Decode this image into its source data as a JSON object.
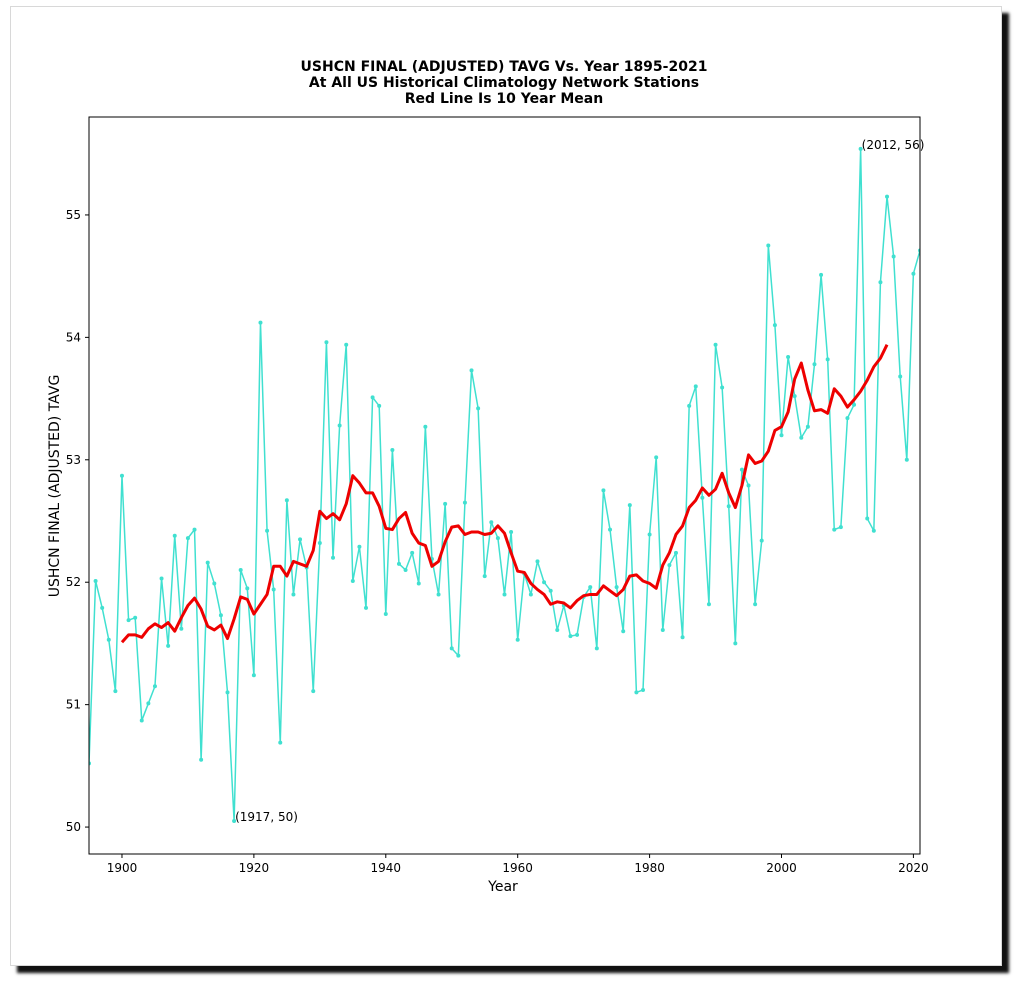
{
  "chart_data": {
    "type": "line",
    "title": [
      "USHCN FINAL (ADJUSTED) TAVG Vs. Year 1895-2021",
      "At All US Historical Climatology Network Stations",
      "Red Line Is 10 Year Mean"
    ],
    "xlabel": "Year",
    "ylabel": "USHCN FINAL (ADJUSTED) TAVG",
    "xlim": [
      1895,
      2021
    ],
    "ylim": [
      49.78,
      55.8
    ],
    "xticks": [
      1900,
      1920,
      1940,
      1960,
      1980,
      2000,
      2020
    ],
    "yticks": [
      50,
      51,
      52,
      53,
      54,
      55
    ],
    "grid": false,
    "legend": "none",
    "series": [
      {
        "color": "#40e0d0",
        "style": "line-with-dots",
        "x": [
          1895,
          1896,
          1897,
          1898,
          1899,
          1900,
          1901,
          1902,
          1903,
          1904,
          1905,
          1906,
          1907,
          1908,
          1909,
          1910,
          1911,
          1912,
          1913,
          1914,
          1915,
          1916,
          1917,
          1918,
          1919,
          1920,
          1921,
          1922,
          1923,
          1924,
          1925,
          1926,
          1927,
          1928,
          1929,
          1930,
          1931,
          1932,
          1933,
          1934,
          1935,
          1936,
          1937,
          1938,
          1939,
          1940,
          1941,
          1942,
          1943,
          1944,
          1945,
          1946,
          1947,
          1948,
          1949,
          1950,
          1951,
          1952,
          1953,
          1954,
          1955,
          1956,
          1957,
          1958,
          1959,
          1960,
          1961,
          1962,
          1963,
          1964,
          1965,
          1966,
          1967,
          1968,
          1969,
          1970,
          1971,
          1972,
          1973,
          1974,
          1975,
          1976,
          1977,
          1978,
          1979,
          1980,
          1981,
          1982,
          1983,
          1984,
          1985,
          1986,
          1987,
          1988,
          1989,
          1990,
          1991,
          1992,
          1993,
          1994,
          1995,
          1996,
          1997,
          1998,
          1999,
          2000,
          2001,
          2002,
          2003,
          2004,
          2005,
          2006,
          2007,
          2008,
          2009,
          2010,
          2011,
          2012,
          2013,
          2014,
          2015,
          2016,
          2017,
          2018,
          2019,
          2020,
          2021
        ],
        "y": [
          50.52,
          52.01,
          51.79,
          51.53,
          51.11,
          52.87,
          51.69,
          51.71,
          50.87,
          51.01,
          51.15,
          52.03,
          51.48,
          52.38,
          51.62,
          52.36,
          52.43,
          50.55,
          52.16,
          51.99,
          51.73,
          51.1,
          50.05,
          52.1,
          51.95,
          51.24,
          54.12,
          52.42,
          51.94,
          50.69,
          52.67,
          51.9,
          52.35,
          52.12,
          51.11,
          52.32,
          53.96,
          52.2,
          53.28,
          53.94,
          52.01,
          52.29,
          51.79,
          53.51,
          53.44,
          51.74,
          53.08,
          52.15,
          52.1,
          52.24,
          51.99,
          53.27,
          52.19,
          51.9,
          52.64,
          51.46,
          51.4,
          52.65,
          53.73,
          53.42,
          52.05,
          52.49,
          52.36,
          51.9,
          52.41,
          51.53,
          52.07,
          51.9,
          52.17,
          52.0,
          51.93,
          51.61,
          51.81,
          51.56,
          51.57,
          51.88,
          51.96,
          51.46,
          52.75,
          52.43,
          51.96,
          51.6,
          52.63,
          51.1,
          51.12,
          52.39,
          53.02,
          51.61,
          52.14,
          52.24,
          51.55,
          53.44,
          53.6,
          52.69,
          51.82,
          53.94,
          53.59,
          52.62,
          51.5,
          52.92,
          52.79,
          51.82,
          52.34,
          54.75,
          54.1,
          53.2,
          53.84,
          53.52,
          53.18,
          53.27,
          53.78,
          54.51,
          53.82,
          52.43,
          52.45,
          53.34,
          53.45,
          55.54,
          52.52,
          52.42,
          54.45,
          55.15,
          54.66,
          53.68,
          53.0,
          54.52,
          54.71
        ]
      },
      {
        "color": "#ee0000",
        "style": "line",
        "x": [
          1900,
          1901,
          1902,
          1903,
          1904,
          1905,
          1906,
          1907,
          1908,
          1909,
          1910,
          1911,
          1912,
          1913,
          1914,
          1915,
          1916,
          1917,
          1918,
          1919,
          1920,
          1921,
          1922,
          1923,
          1924,
          1925,
          1926,
          1927,
          1928,
          1929,
          1930,
          1931,
          1932,
          1933,
          1934,
          1935,
          1936,
          1937,
          1938,
          1939,
          1940,
          1941,
          1942,
          1943,
          1944,
          1945,
          1946,
          1947,
          1948,
          1949,
          1950,
          1951,
          1952,
          1953,
          1954,
          1955,
          1956,
          1957,
          1958,
          1959,
          1960,
          1961,
          1962,
          1963,
          1964,
          1965,
          1966,
          1967,
          1968,
          1969,
          1970,
          1971,
          1972,
          1973,
          1974,
          1975,
          1976,
          1977,
          1978,
          1979,
          1980,
          1981,
          1982,
          1983,
          1984,
          1985,
          1986,
          1987,
          1988,
          1989,
          1990,
          1991,
          1992,
          1993,
          1994,
          1995,
          1996,
          1997,
          1998,
          1999,
          2000,
          2001,
          2002,
          2003,
          2004,
          2005,
          2006,
          2007,
          2008,
          2009,
          2010,
          2011,
          2012,
          2013,
          2014,
          2015,
          2016
        ],
        "y": [
          51.51,
          51.57,
          51.57,
          51.55,
          51.62,
          51.66,
          51.63,
          51.67,
          51.6,
          51.71,
          51.81,
          51.87,
          51.78,
          51.64,
          51.61,
          51.65,
          51.54,
          51.7,
          51.88,
          51.86,
          51.74,
          51.82,
          51.9,
          52.13,
          52.13,
          52.05,
          52.17,
          52.15,
          52.13,
          52.26,
          52.58,
          52.52,
          52.56,
          52.51,
          52.64,
          52.87,
          52.81,
          52.73,
          52.73,
          52.62,
          52.44,
          52.43,
          52.52,
          52.57,
          52.4,
          52.32,
          52.3,
          52.13,
          52.17,
          52.33,
          52.45,
          52.46,
          52.39,
          52.41,
          52.41,
          52.39,
          52.4,
          52.46,
          52.4,
          52.24,
          52.09,
          52.08,
          51.99,
          51.94,
          51.9,
          51.82,
          51.84,
          51.83,
          51.79,
          51.85,
          51.89,
          51.9,
          51.9,
          51.97,
          51.93,
          51.89,
          51.94,
          52.05,
          52.06,
          52.01,
          51.99,
          51.95,
          52.14,
          52.24,
          52.39,
          52.46,
          52.61,
          52.67,
          52.77,
          52.71,
          52.76,
          52.89,
          52.73,
          52.61,
          52.79,
          53.04,
          52.97,
          52.99,
          53.07,
          53.24,
          53.27,
          53.39,
          53.66,
          53.79,
          53.57,
          53.4,
          53.41,
          53.38,
          53.58,
          53.52,
          53.43,
          53.49,
          53.56,
          53.65,
          53.76,
          53.83,
          53.94
        ]
      }
    ],
    "annotations": [
      {
        "text": "(2012, 56)",
        "x": 2012,
        "y": 55.54
      },
      {
        "text": "(1917, 50)",
        "x": 1917,
        "y": 50.05
      }
    ]
  }
}
